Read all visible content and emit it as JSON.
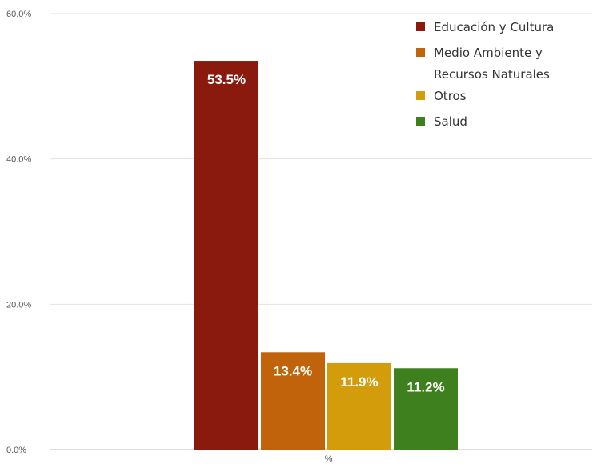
{
  "chart_data": {
    "type": "bar",
    "categories": [
      "%"
    ],
    "series": [
      {
        "name": "Educación y Cultura",
        "values": [
          53.5
        ],
        "label": "53.5%",
        "color": "#8b1a0e"
      },
      {
        "name": "Medio Ambiente y Recursos Naturales",
        "values": [
          13.4
        ],
        "label": "13.4%",
        "color": "#c0630a",
        "legend_lines": [
          "Medio Ambiente y",
          "Recursos Naturales"
        ]
      },
      {
        "name": "Otros",
        "values": [
          11.9
        ],
        "label": "11.9%",
        "color": "#d29c0a"
      },
      {
        "name": "Salud",
        "values": [
          11.2
        ],
        "label": "11.2%",
        "color": "#3e7f1e"
      }
    ],
    "yticks": [
      "0.0%",
      "20.0%",
      "40.0%",
      "60.0%"
    ],
    "ytick_values": [
      0,
      20,
      40,
      60
    ],
    "ylim": [
      0,
      60
    ],
    "grid": true,
    "legend_position": "top-right",
    "title": "",
    "xlabel": "",
    "ylabel": ""
  }
}
